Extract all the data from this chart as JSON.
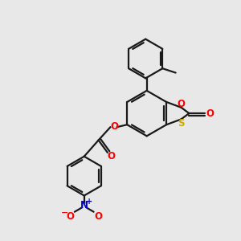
{
  "bg_color": "#e8e8e8",
  "bond_color": "#1a1a1a",
  "o_color": "#ff0000",
  "s_color": "#ccaa00",
  "n_color": "#0000cc",
  "no_color": "#ff0000",
  "line_width": 1.6,
  "figsize": [
    3.0,
    3.0
  ],
  "dpi": 100,
  "xlim": [
    0,
    10
  ],
  "ylim": [
    0,
    10
  ]
}
